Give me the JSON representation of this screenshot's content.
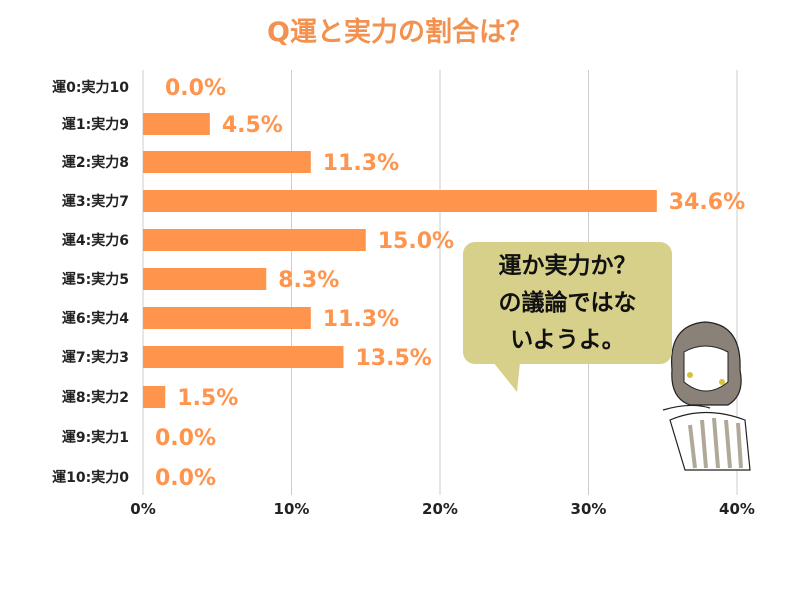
{
  "chart_data": {
    "type": "bar",
    "orientation": "horizontal",
    "title": "Q運と実力の割合は？",
    "categories": [
      "運0:実力10",
      "運1:実力9",
      "運2:実力8",
      "運3:実力7",
      "運4:実力6",
      "運5:実力5",
      "運6:実力4",
      "運7:実力3",
      "運8:実力2",
      "運9:実力1",
      "運10:実力0"
    ],
    "values": [
      0.0,
      4.5,
      11.3,
      34.6,
      15.0,
      8.3,
      11.3,
      13.5,
      1.5,
      0.0,
      0.0
    ],
    "data_labels": [
      "0.0%",
      "4.5%",
      "11.3%",
      "34.6%",
      "15.0%",
      "8.3%",
      "11.3%",
      "13.5%",
      "1.5%",
      "0.0%",
      "0.0%"
    ],
    "xticks": [
      "0%",
      "10%",
      "20%",
      "30%",
      "40%"
    ],
    "xlim": [
      0,
      40
    ],
    "grid": true,
    "xlabel": "",
    "ylabel": ""
  },
  "bubble": {
    "lines": [
      "運か実力か？",
      "の議論ではな",
      "いようよ。"
    ]
  },
  "colors": {
    "bar": "#ff944d",
    "label": "#ff944d",
    "title": "#f39250",
    "bubble": "#d6d08a",
    "grid": "#cccccc"
  }
}
